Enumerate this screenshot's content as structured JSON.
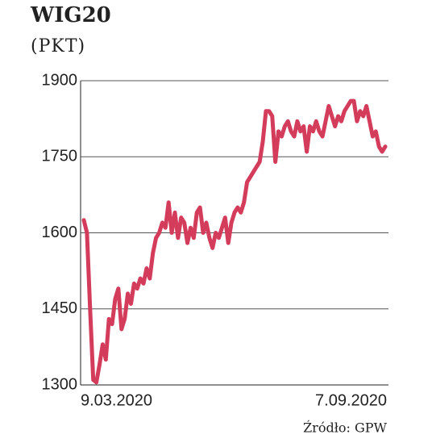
{
  "chart_data": {
    "type": "line",
    "title": "WIG20",
    "subtitle": "(PKT)",
    "source": "Źródło: GPW",
    "categories": [
      "9.03.2020",
      null,
      null,
      null,
      null,
      null,
      null,
      null,
      null,
      null,
      null,
      null,
      null,
      null,
      null,
      null,
      null,
      null,
      null,
      null,
      null,
      null,
      null,
      null,
      null,
      null,
      null,
      null,
      null,
      null,
      null,
      null,
      null,
      null,
      null,
      null,
      null,
      null,
      null,
      null,
      null,
      null,
      null,
      null,
      null,
      null,
      null,
      null,
      null,
      null,
      null,
      null,
      null,
      null,
      null,
      null,
      null,
      null,
      null,
      null,
      null,
      null,
      null,
      null,
      null,
      null,
      null,
      null,
      null,
      null,
      null,
      null,
      null,
      null,
      null,
      null,
      null,
      null,
      null,
      null,
      null,
      null,
      null,
      null,
      null,
      null,
      null,
      null,
      null,
      null,
      null,
      null,
      null,
      null,
      null,
      null,
      "7.09.2020"
    ],
    "values": [
      1625,
      1600,
      1450,
      1310,
      1305,
      1340,
      1380,
      1350,
      1430,
      1420,
      1470,
      1490,
      1410,
      1430,
      1480,
      1460,
      1500,
      1490,
      1510,
      1500,
      1530,
      1510,
      1560,
      1590,
      1600,
      1620,
      1610,
      1660,
      1600,
      1640,
      1590,
      1630,
      1620,
      1580,
      1610,
      1590,
      1640,
      1650,
      1600,
      1620,
      1590,
      1570,
      1600,
      1590,
      1610,
      1630,
      1580,
      1620,
      1640,
      1650,
      1640,
      1660,
      1700,
      1710,
      1720,
      1730,
      1740,
      1780,
      1840,
      1840,
      1830,
      1740,
      1800,
      1790,
      1810,
      1820,
      1800,
      1790,
      1820,
      1800,
      1810,
      1760,
      1810,
      1800,
      1820,
      1800,
      1790,
      1820,
      1850,
      1830,
      1810,
      1830,
      1820,
      1840,
      1850,
      1860,
      1860,
      1820,
      1840,
      1830,
      1850,
      1820,
      1790,
      1800,
      1770,
      1760,
      1770
    ],
    "color": "#d43c5c",
    "ylim": [
      1300,
      1900
    ],
    "yticks": [
      1300,
      1450,
      1600,
      1750,
      1900
    ],
    "grid": true
  }
}
